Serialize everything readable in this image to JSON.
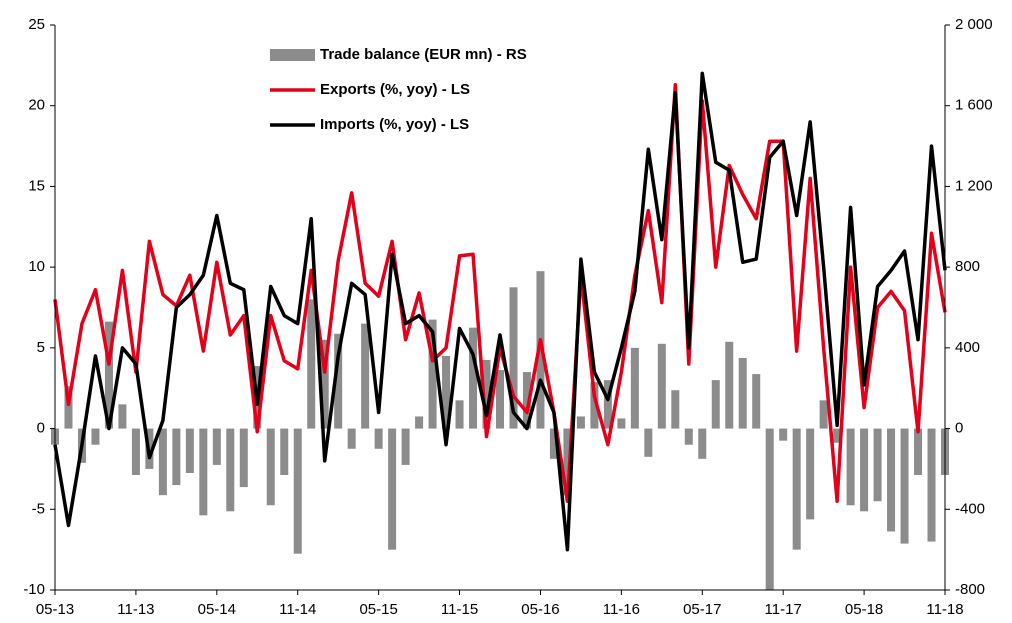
{
  "chart_data": {
    "type": "combo",
    "categories": [
      "05-13",
      null,
      null,
      null,
      null,
      null,
      "11-13",
      null,
      null,
      null,
      null,
      null,
      "05-14",
      null,
      null,
      null,
      null,
      null,
      "11-14",
      null,
      null,
      null,
      null,
      null,
      "05-15",
      null,
      null,
      null,
      null,
      null,
      "11-15",
      null,
      null,
      null,
      null,
      null,
      "05-16",
      null,
      null,
      null,
      null,
      null,
      "11-16",
      null,
      null,
      null,
      null,
      null,
      "05-17",
      null,
      null,
      null,
      null,
      null,
      "11-17",
      null,
      null,
      null,
      null,
      null,
      "05-18",
      null,
      null,
      null,
      null,
      null,
      "11-18"
    ],
    "series": [
      {
        "name": "Trade balance (EUR mn) - RS",
        "type": "bar",
        "axis": "y2",
        "color": "#8c8c8c",
        "values": [
          -80,
          210,
          -170,
          -80,
          530,
          120,
          -230,
          -200,
          -330,
          -280,
          -220,
          -430,
          -180,
          -410,
          -290,
          310,
          -380,
          -230,
          -620,
          640,
          440,
          470,
          -100,
          520,
          -100,
          -600,
          -180,
          60,
          540,
          360,
          140,
          500,
          340,
          290,
          700,
          280,
          780,
          -150,
          -330,
          60,
          230,
          240,
          50,
          400,
          -140,
          420,
          190,
          -80,
          -150,
          240,
          430,
          350,
          270,
          -800,
          -60,
          -600,
          -450,
          140,
          -70,
          -380,
          -410,
          -360,
          -510,
          -570,
          -230,
          -560,
          -230
        ]
      },
      {
        "name": "Exports (%, yoy) - LS",
        "type": "line",
        "color": "#e2001a",
        "values": [
          8,
          1.5,
          6.5,
          8.6,
          4,
          9.8,
          3.5,
          11.6,
          8.3,
          7.6,
          9.5,
          4.8,
          10.3,
          5.8,
          7,
          -0.2,
          7,
          4.2,
          3.7,
          9.8,
          3.5,
          10.4,
          14.6,
          9,
          8.2,
          11.6,
          5.5,
          8.4,
          4.2,
          5,
          10.7,
          10.8,
          -0.5,
          5,
          2,
          1,
          5.5,
          1,
          -4.5,
          9.5,
          2,
          -1,
          3.5,
          9.5,
          13.5,
          7.8,
          21.3,
          4,
          20.3,
          10,
          16.3,
          14.5,
          13,
          17.8,
          17.8,
          4.8,
          15.5,
          5,
          -4.5,
          10,
          1.3,
          7.5,
          8.5,
          7.3,
          -0.2,
          12.1,
          7.2
        ]
      },
      {
        "name": "Imports (%, yoy) - LS",
        "type": "line",
        "color": "#000000",
        "values": [
          -1,
          -6,
          -1,
          4.5,
          0,
          5,
          4,
          -1.8,
          0.5,
          7.5,
          8.3,
          9.5,
          13.2,
          9,
          8.6,
          1.5,
          8.8,
          7,
          6.5,
          13,
          -2,
          4.5,
          9,
          8.3,
          1,
          10.8,
          6.5,
          7,
          6,
          -1,
          6.2,
          4.6,
          0.8,
          5.8,
          1,
          0,
          3,
          1,
          -7.5,
          10.5,
          3.5,
          1.8,
          5,
          8.5,
          17.3,
          11.7,
          20.8,
          5,
          22,
          16.5,
          16,
          10.3,
          10.5,
          16.8,
          17.8,
          13.2,
          19,
          10,
          0.2,
          13.7,
          2.7,
          8.8,
          9.8,
          11,
          5.5,
          17.5,
          9.8
        ]
      }
    ],
    "ylim": [
      -10,
      25
    ],
    "yticks": [
      -10,
      -5,
      0,
      5,
      10,
      15,
      20,
      25
    ],
    "y2lim": [
      -800,
      2000
    ],
    "y2ticks": [
      -800,
      -400,
      0,
      400,
      800,
      {
        "value": 1200,
        "label": "1 200"
      },
      {
        "value": 1600,
        "label": "1 600"
      },
      {
        "value": 2000,
        "label": "2 000"
      }
    ],
    "grid": false,
    "legend": "top"
  }
}
